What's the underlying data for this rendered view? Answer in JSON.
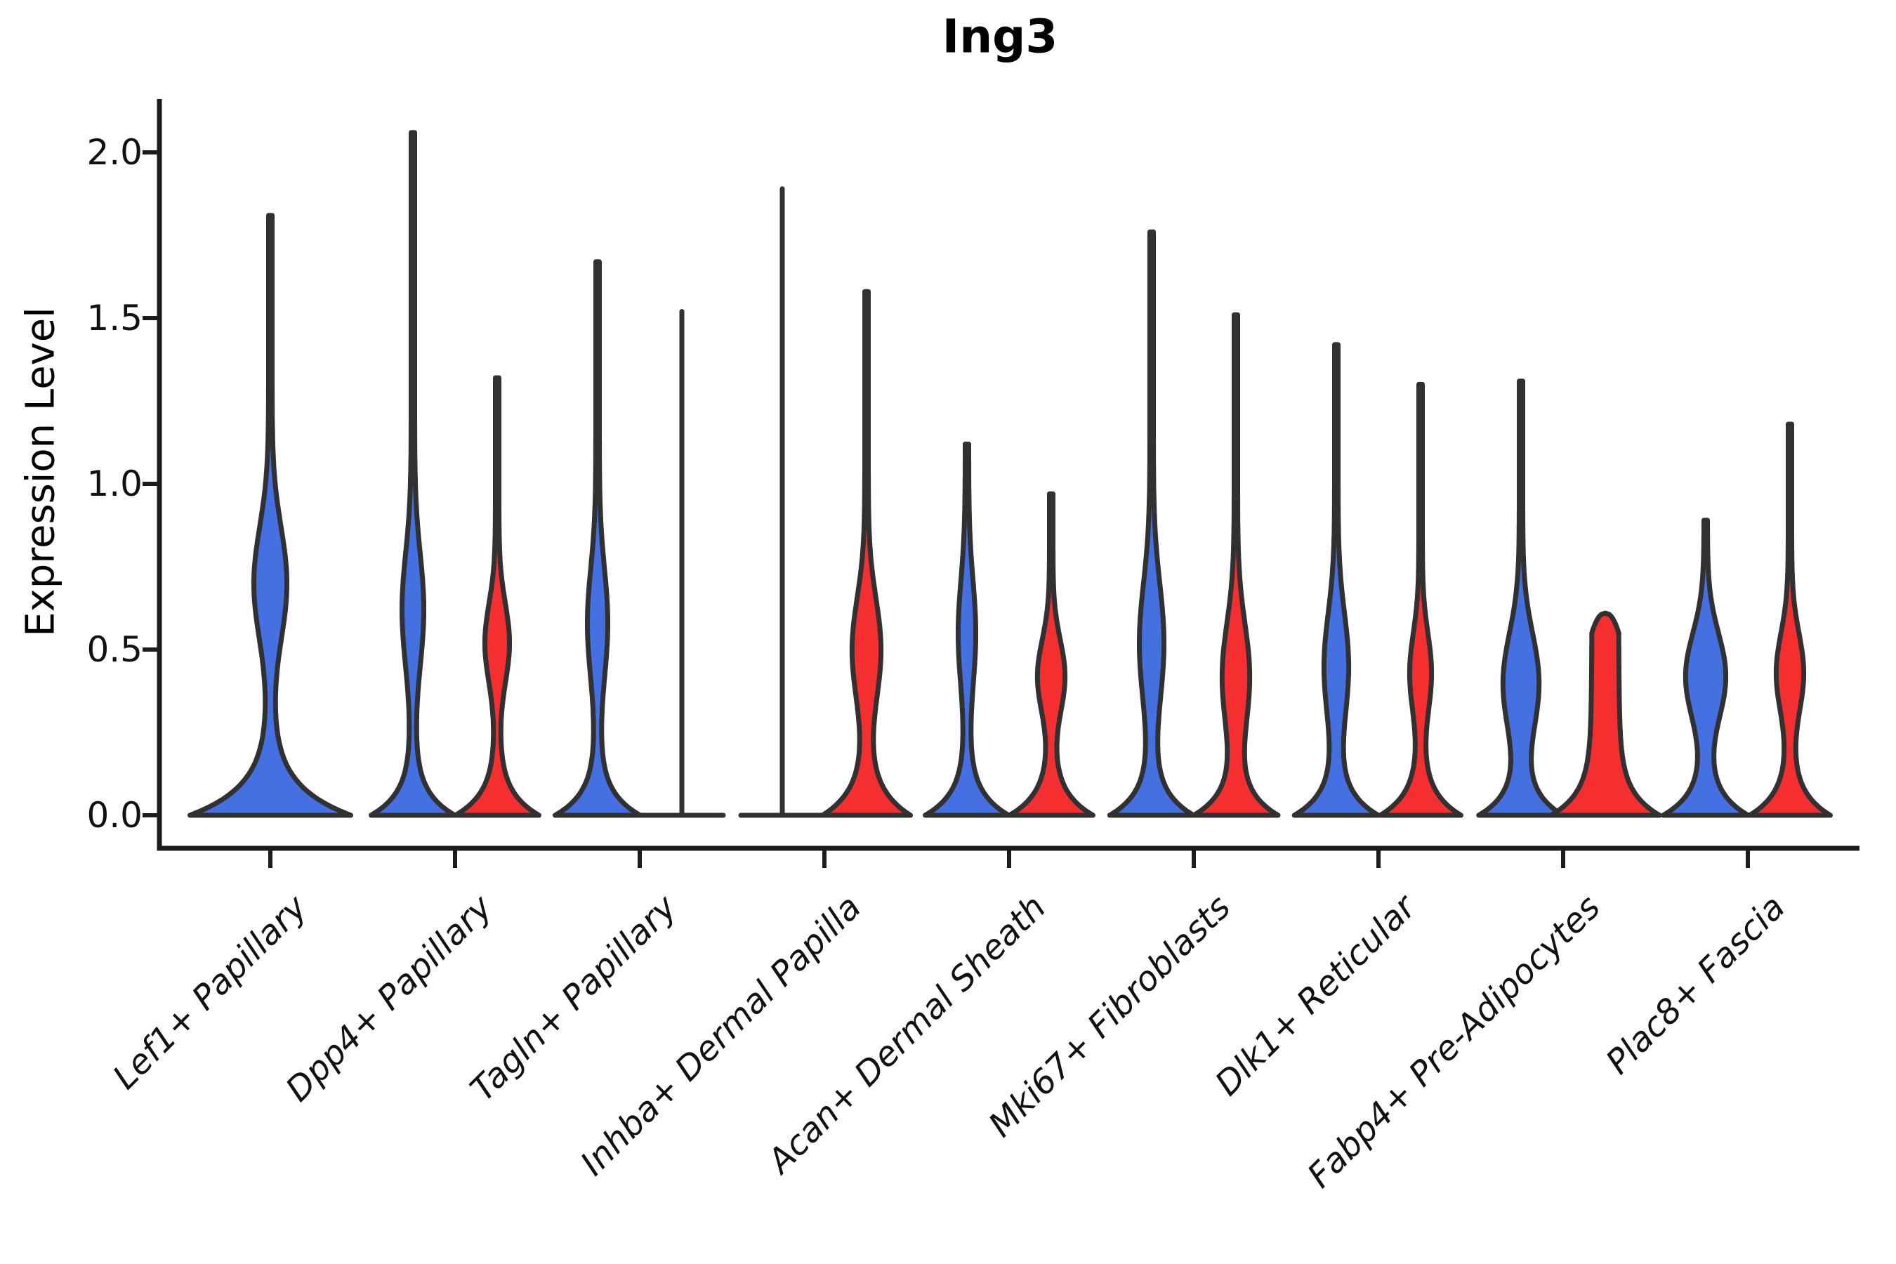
{
  "chart_data": {
    "type": "violin",
    "title": "Ing3",
    "ylabel": "Expression Level",
    "xlabel": "",
    "ylim": [
      -0.1,
      2.16
    ],
    "yticks": [
      0.0,
      0.5,
      1.0,
      1.5,
      2.0
    ],
    "ytick_labels": [
      "0.0",
      "0.5",
      "1.0",
      "1.5",
      "2.0"
    ],
    "grid": false,
    "legend": "none",
    "categories": [
      "Lef1+ Papillary",
      "Dpp4+ Papillary",
      "Tagln+ Papillary",
      "Inhba+ Dermal Papilla",
      "Acan+ Dermal Sheath",
      "Mki67+ Fibroblasts",
      "Dlk1+ Reticular",
      "Fabp4+ Pre-Adipocytes",
      "Plac8+ Fascia"
    ],
    "series": [
      {
        "id": "blue",
        "color": "#4470e2"
      },
      {
        "id": "red",
        "color": "#f52f2f"
      }
    ],
    "colors": {
      "blue": "#4470e2",
      "red": "#f52f2f",
      "edge": "#313131"
    },
    "violins": [
      {
        "category": 0,
        "color": "blue",
        "side": "center",
        "kind": "normal",
        "max": 1.81,
        "bulge": {
          "c": 0.7,
          "s": 0.17,
          "w": 21
        },
        "base": {
          "w": 112,
          "h": 0.09
        }
      },
      {
        "category": 1,
        "color": "blue",
        "side": "left",
        "kind": "normal",
        "max": 2.06,
        "bulge": {
          "c": 0.62,
          "s": 0.17,
          "w": 13
        },
        "base": {
          "w": 57,
          "h": 0.07
        }
      },
      {
        "category": 1,
        "color": "red",
        "side": "right",
        "kind": "normal",
        "max": 1.32,
        "bulge": {
          "c": 0.52,
          "s": 0.12,
          "w": 15
        },
        "base": {
          "w": 57,
          "h": 0.07
        }
      },
      {
        "category": 2,
        "color": "blue",
        "side": "left",
        "kind": "normal",
        "max": 1.67,
        "bulge": {
          "c": 0.58,
          "s": 0.165,
          "w": 12
        },
        "base": {
          "w": 58,
          "h": 0.07
        }
      },
      {
        "category": 2,
        "color": "red",
        "side": "right",
        "kind": "collapsed",
        "max": 1.52,
        "base": {
          "w": 59,
          "h": 0.07
        }
      },
      {
        "category": 3,
        "color": "blue",
        "side": "left",
        "kind": "collapsed",
        "max": 1.89,
        "base": {
          "w": 59,
          "h": 0.07
        }
      },
      {
        "category": 3,
        "color": "red",
        "side": "right",
        "kind": "normal",
        "max": 1.58,
        "bulge": {
          "c": 0.5,
          "s": 0.155,
          "w": 18
        },
        "base": {
          "w": 60,
          "h": 0.08
        }
      },
      {
        "category": 4,
        "color": "blue",
        "side": "left",
        "kind": "normal",
        "max": 1.12,
        "bulge": {
          "c": 0.55,
          "s": 0.16,
          "w": 10
        },
        "base": {
          "w": 57,
          "h": 0.07
        }
      },
      {
        "category": 4,
        "color": "red",
        "side": "right",
        "kind": "normal",
        "max": 0.97,
        "bulge": {
          "c": 0.42,
          "s": 0.11,
          "w": 17
        },
        "base": {
          "w": 57,
          "h": 0.07
        }
      },
      {
        "category": 5,
        "color": "blue",
        "side": "left",
        "kind": "normal",
        "max": 1.76,
        "bulge": {
          "c": 0.52,
          "s": 0.18,
          "w": 15
        },
        "base": {
          "w": 57,
          "h": 0.07
        }
      },
      {
        "category": 5,
        "color": "red",
        "side": "right",
        "kind": "normal",
        "max": 1.51,
        "bulge": {
          "c": 0.42,
          "s": 0.16,
          "w": 17
        },
        "base": {
          "w": 57,
          "h": 0.07
        }
      },
      {
        "category": 6,
        "color": "blue",
        "side": "left",
        "kind": "normal",
        "max": 1.42,
        "bulge": {
          "c": 0.45,
          "s": 0.16,
          "w": 15
        },
        "base": {
          "w": 57,
          "h": 0.07
        }
      },
      {
        "category": 6,
        "color": "red",
        "side": "right",
        "kind": "normal",
        "max": 1.3,
        "bulge": {
          "c": 0.43,
          "s": 0.12,
          "w": 13
        },
        "base": {
          "w": 55,
          "h": 0.07
        }
      },
      {
        "category": 7,
        "color": "blue",
        "side": "left",
        "kind": "normal",
        "max": 1.31,
        "bulge": {
          "c": 0.4,
          "s": 0.15,
          "w": 23
        },
        "base": {
          "w": 57,
          "h": 0.07
        }
      },
      {
        "category": 7,
        "color": "red",
        "side": "right",
        "kind": "plateau",
        "max": 0.61,
        "col": {
          "w": 19,
          "sh": 0.06
        },
        "base": {
          "w": 57,
          "h": 0.07
        }
      },
      {
        "category": 8,
        "color": "blue",
        "side": "left",
        "kind": "normal",
        "max": 0.89,
        "bulge": {
          "c": 0.42,
          "s": 0.13,
          "w": 26
        },
        "base": {
          "w": 58,
          "h": 0.07
        }
      },
      {
        "category": 8,
        "color": "red",
        "side": "right",
        "kind": "normal",
        "max": 1.18,
        "bulge": {
          "c": 0.43,
          "s": 0.12,
          "w": 17
        },
        "base": {
          "w": 55,
          "h": 0.07
        }
      }
    ]
  }
}
